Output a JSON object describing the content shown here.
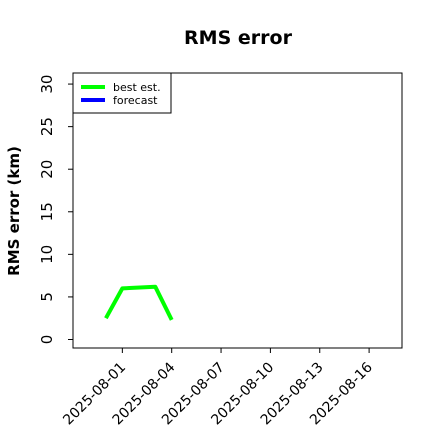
{
  "chart_data": {
    "type": "line",
    "title": "RMS error",
    "y_label": "RMS error (km)",
    "series": [
      {
        "name": "best est.",
        "color": "#00ff00",
        "x": [
          "2025-07-31",
          "2025-08-01",
          "2025-08-03",
          "2025-08-04"
        ],
        "values": [
          2.5,
          6.0,
          6.2,
          2.3
        ]
      },
      {
        "name": "forecast",
        "color": "#0000ff",
        "x": [],
        "values": []
      }
    ],
    "xlim": [
      "2025-07-29",
      "2025-08-18"
    ],
    "xticks": [
      "2025-08-01",
      "2025-08-04",
      "2025-08-07",
      "2025-08-10",
      "2025-08-13",
      "2025-08-16"
    ],
    "highlight_xtick_index": 2,
    "highlight_color": "#228b22",
    "ylim": [
      -1,
      31.3
    ],
    "yticks": [
      0,
      5,
      10,
      15,
      20,
      25,
      30
    ],
    "grid": false,
    "legend": "upper left"
  }
}
